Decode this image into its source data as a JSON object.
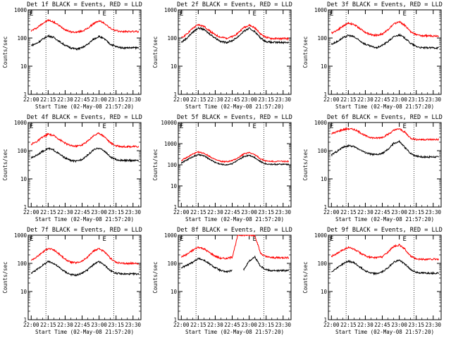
{
  "colors": {
    "events": "#000000",
    "lld": "#ff0000",
    "axis": "#000000",
    "background": "#ffffff"
  },
  "shared": {
    "xlabel": "Start Time (02-May-08 21:57:20)",
    "ylabel": "Counts/sec",
    "x_ticks": [
      "22:00",
      "22:15",
      "22:30",
      "22:45",
      "23:00",
      "23:15",
      "23:30"
    ],
    "y_ticks": [
      "1",
      "10",
      "100",
      "1000"
    ],
    "marker_labels": [
      "E",
      "E"
    ]
  },
  "chart_data": [
    {
      "type": "line",
      "title": "Det 1f BLACK = Events, RED = LLD",
      "xlabel": "Start Time (02-May-08 21:57:20)",
      "ylabel": "Counts/sec",
      "x_range": [
        "21:57:20",
        "23:37:00"
      ],
      "ylim": [
        1,
        1000
      ],
      "yscale": "log",
      "vlines": [
        "22:13",
        "23:13"
      ],
      "series": [
        {
          "color": "red",
          "x": [
            "22:00",
            "22:05",
            "22:10",
            "22:15",
            "22:20",
            "22:25",
            "22:30",
            "22:35",
            "22:40",
            "22:45",
            "22:50",
            "22:55",
            "23:00",
            "23:05",
            "23:10",
            "23:15",
            "23:20",
            "23:25",
            "23:30",
            "23:35"
          ],
          "values": [
            180,
            230,
            330,
            430,
            370,
            270,
            200,
            165,
            160,
            175,
            220,
            320,
            410,
            330,
            220,
            180,
            170,
            170,
            170,
            170
          ]
        },
        {
          "color": "black",
          "x": [
            "22:00",
            "22:05",
            "22:10",
            "22:15",
            "22:20",
            "22:25",
            "22:30",
            "22:35",
            "22:40",
            "22:45",
            "22:50",
            "22:55",
            "23:00",
            "23:05",
            "23:10",
            "23:15",
            "23:20",
            "23:25",
            "23:30",
            "23:35"
          ],
          "values": [
            55,
            65,
            90,
            120,
            105,
            75,
            55,
            45,
            40,
            45,
            60,
            90,
            115,
            90,
            60,
            50,
            45,
            45,
            45,
            45
          ]
        }
      ]
    },
    {
      "type": "line",
      "title": "Det 2f BLACK = Events, RED = LLD",
      "xlabel": "Start Time (02-May-08 21:57:20)",
      "ylabel": "Counts/sec",
      "x_range": [
        "21:57:20",
        "23:37:00"
      ],
      "ylim": [
        1,
        1000
      ],
      "yscale": "log",
      "vlines": [
        "22:13",
        "23:13"
      ],
      "series": [
        {
          "color": "red",
          "x": [
            "22:00",
            "22:05",
            "22:10",
            "22:15",
            "22:20",
            "22:25",
            "22:30",
            "22:35",
            "22:40",
            "22:45",
            "22:50",
            "22:55",
            "23:00",
            "23:05",
            "23:10",
            "23:15",
            "23:20",
            "23:25",
            "23:30",
            "23:35"
          ],
          "values": [
            100,
            140,
            220,
            300,
            260,
            180,
            130,
            105,
            100,
            110,
            150,
            230,
            290,
            230,
            140,
            105,
            95,
            95,
            95,
            95
          ]
        },
        {
          "color": "black",
          "x": [
            "22:00",
            "22:05",
            "22:10",
            "22:15",
            "22:20",
            "22:25",
            "22:30",
            "22:35",
            "22:40",
            "22:45",
            "22:50",
            "22:55",
            "23:00",
            "23:05",
            "23:10",
            "23:15",
            "23:20",
            "23:25",
            "23:30",
            "23:35"
          ],
          "values": [
            70,
            100,
            160,
            230,
            200,
            140,
            100,
            75,
            70,
            80,
            110,
            170,
            220,
            170,
            100,
            75,
            70,
            70,
            70,
            70
          ]
        }
      ]
    },
    {
      "type": "line",
      "title": "Det 3f BLACK = Events, RED = LLD",
      "xlabel": "Start Time (02-May-08 21:57:20)",
      "ylabel": "Counts/sec",
      "x_range": [
        "21:57:20",
        "23:37:00"
      ],
      "ylim": [
        1,
        1000
      ],
      "yscale": "log",
      "vlines": [
        "22:13",
        "23:13"
      ],
      "series": [
        {
          "color": "red",
          "x": [
            "22:00",
            "22:05",
            "22:10",
            "22:15",
            "22:20",
            "22:25",
            "22:30",
            "22:35",
            "22:40",
            "22:45",
            "22:50",
            "22:55",
            "23:00",
            "23:05",
            "23:10",
            "23:15",
            "23:20",
            "23:25",
            "23:30",
            "23:35"
          ],
          "values": [
            150,
            190,
            260,
            340,
            300,
            220,
            160,
            130,
            125,
            140,
            200,
            310,
            380,
            280,
            170,
            130,
            120,
            120,
            120,
            120
          ]
        },
        {
          "color": "black",
          "x": [
            "22:00",
            "22:05",
            "22:10",
            "22:15",
            "22:20",
            "22:25",
            "22:30",
            "22:35",
            "22:40",
            "22:45",
            "22:50",
            "22:55",
            "23:00",
            "23:05",
            "23:10",
            "23:15",
            "23:20",
            "23:25",
            "23:30",
            "23:35"
          ],
          "values": [
            60,
            75,
            100,
            125,
            110,
            80,
            60,
            50,
            45,
            55,
            75,
            110,
            130,
            100,
            65,
            50,
            45,
            45,
            45,
            45
          ]
        }
      ]
    },
    {
      "type": "line",
      "title": "Det 4f BLACK = Events, RED = LLD",
      "xlabel": "Start Time (02-May-08 21:57:20)",
      "ylabel": "Counts/sec",
      "x_range": [
        "21:57:20",
        "23:37:00"
      ],
      "ylim": [
        1,
        1000
      ],
      "yscale": "log",
      "vlines": [
        "22:13",
        "23:13"
      ],
      "series": [
        {
          "color": "red",
          "x": [
            "22:00",
            "22:05",
            "22:10",
            "22:15",
            "22:20",
            "22:25",
            "22:30",
            "22:35",
            "22:40",
            "22:45",
            "22:50",
            "22:55",
            "23:00",
            "23:05",
            "23:10",
            "23:15",
            "23:20",
            "23:25",
            "23:30",
            "23:35"
          ],
          "values": [
            170,
            210,
            300,
            390,
            340,
            250,
            185,
            150,
            145,
            160,
            220,
            340,
            420,
            310,
            190,
            150,
            140,
            140,
            140,
            140
          ]
        },
        {
          "color": "black",
          "x": [
            "22:00",
            "22:05",
            "22:10",
            "22:15",
            "22:20",
            "22:25",
            "22:30",
            "22:35",
            "22:40",
            "22:45",
            "22:50",
            "22:55",
            "23:00",
            "23:05",
            "23:10",
            "23:15",
            "23:20",
            "23:25",
            "23:30",
            "23:35"
          ],
          "values": [
            55,
            70,
            95,
            120,
            105,
            75,
            55,
            45,
            42,
            50,
            70,
            105,
            125,
            95,
            60,
            48,
            45,
            45,
            45,
            45
          ]
        }
      ]
    },
    {
      "type": "line",
      "title": "Det 5f BLACK = Events, RED = LLD",
      "xlabel": "Start Time (02-May-08 21:57:20)",
      "ylabel": "Counts/sec",
      "x_range": [
        "21:57:20",
        "23:37:00"
      ],
      "ylim": [
        1,
        10000
      ],
      "yscale": "log",
      "vlines": [
        "22:13",
        "23:13"
      ],
      "series": [
        {
          "color": "red",
          "x": [
            "22:00",
            "22:05",
            "22:10",
            "22:15",
            "22:20",
            "22:25",
            "22:30",
            "22:35",
            "22:40",
            "22:45",
            "22:50",
            "22:55",
            "23:00",
            "23:05",
            "23:10",
            "23:15",
            "23:20",
            "23:25",
            "23:30",
            "23:35"
          ],
          "values": [
            160,
            220,
            320,
            400,
            350,
            250,
            175,
            145,
            140,
            155,
            210,
            320,
            390,
            300,
            190,
            150,
            145,
            145,
            145,
            145
          ]
        },
        {
          "color": "black",
          "x": [
            "22:00",
            "22:05",
            "22:10",
            "22:15",
            "22:20",
            "22:25",
            "22:30",
            "22:35",
            "22:40",
            "22:45",
            "22:50",
            "22:55",
            "23:00",
            "23:05",
            "23:10",
            "23:15",
            "23:20",
            "23:25",
            "23:30",
            "23:35"
          ],
          "values": [
            120,
            170,
            240,
            300,
            265,
            185,
            130,
            105,
            100,
            115,
            160,
            240,
            290,
            220,
            140,
            110,
            105,
            105,
            105,
            105
          ]
        }
      ]
    },
    {
      "type": "line",
      "title": "Det 6f BLACK = Events, RED = LLD",
      "xlabel": "Start Time (02-May-08 21:57:20)",
      "ylabel": "Counts/sec",
      "x_range": [
        "21:57:20",
        "23:37:00"
      ],
      "ylim": [
        1,
        1000
      ],
      "yscale": "log",
      "vlines": [
        "22:13",
        "23:13"
      ],
      "series": [
        {
          "color": "red",
          "x": [
            "22:00",
            "22:05",
            "22:10",
            "22:15",
            "22:20",
            "22:25",
            "22:30",
            "22:35",
            "22:40",
            "22:45",
            "22:50",
            "22:55",
            "23:00",
            "23:05",
            "23:10",
            "23:15",
            "23:20",
            "23:25",
            "23:30",
            "23:35"
          ],
          "values": [
            400,
            470,
            560,
            600,
            570,
            450,
            340,
            290,
            280,
            300,
            380,
            520,
            600,
            450,
            280,
            250,
            250,
            250,
            250,
            250
          ]
        },
        {
          "color": "black",
          "x": [
            "22:00",
            "22:05",
            "22:10",
            "22:15",
            "22:20",
            "22:25",
            "22:30",
            "22:35",
            "22:40",
            "22:45",
            "22:50",
            "22:55",
            "23:00",
            "23:05",
            "23:10",
            "23:15",
            "23:20",
            "23:25",
            "23:30",
            "23:35"
          ],
          "values": [
            70,
            95,
            130,
            150,
            140,
            110,
            85,
            75,
            72,
            80,
            110,
            180,
            210,
            130,
            80,
            65,
            60,
            60,
            60,
            60
          ]
        }
      ]
    },
    {
      "type": "line",
      "title": "Det 7f BLACK = Events, RED = LLD",
      "xlabel": "Start Time (02-May-08 21:57:20)",
      "ylabel": "Counts/sec",
      "x_range": [
        "21:57:20",
        "23:37:00"
      ],
      "ylim": [
        1,
        1000
      ],
      "yscale": "log",
      "vlines": [
        "22:13",
        "23:13"
      ],
      "series": [
        {
          "color": "red",
          "x": [
            "22:00",
            "22:05",
            "22:10",
            "22:15",
            "22:20",
            "22:25",
            "22:30",
            "22:35",
            "22:40",
            "22:45",
            "22:50",
            "22:55",
            "23:00",
            "23:05",
            "23:10",
            "23:15",
            "23:20",
            "23:25",
            "23:30",
            "23:35"
          ],
          "values": [
            130,
            170,
            250,
            340,
            300,
            210,
            140,
            110,
            105,
            120,
            170,
            270,
            340,
            250,
            150,
            110,
            100,
            100,
            100,
            100
          ]
        },
        {
          "color": "black",
          "x": [
            "22:00",
            "22:05",
            "22:10",
            "22:15",
            "22:20",
            "22:25",
            "22:30",
            "22:35",
            "22:40",
            "22:45",
            "22:50",
            "22:55",
            "23:00",
            "23:05",
            "23:10",
            "23:15",
            "23:20",
            "23:25",
            "23:30",
            "23:35"
          ],
          "values": [
            45,
            60,
            85,
            115,
            100,
            70,
            50,
            40,
            38,
            45,
            60,
            90,
            115,
            85,
            55,
            45,
            42,
            42,
            42,
            42
          ]
        }
      ]
    },
    {
      "type": "line",
      "title": "Det 8f BLACK = Events, RED = LLD",
      "xlabel": "Start Time (02-May-08 21:57:20)",
      "ylabel": "Counts/sec",
      "x_range": [
        "21:57:20",
        "23:37:00"
      ],
      "ylim": [
        1,
        1000
      ],
      "yscale": "log",
      "vlines": [
        "22:13",
        "23:13"
      ],
      "series": [
        {
          "color": "red",
          "x": [
            "22:00",
            "22:05",
            "22:10",
            "22:15",
            "22:20",
            "22:25",
            "22:30",
            "22:35",
            "22:40",
            "22:45",
            "22:50",
            "22:55",
            "23:00",
            "23:05",
            "23:10",
            "23:15",
            "23:20",
            "23:25",
            "23:30",
            "23:35"
          ],
          "values": [
            170,
            210,
            290,
            380,
            330,
            240,
            180,
            150,
            150,
            165,
            1000,
            1000,
            1000,
            1000,
            230,
            170,
            160,
            160,
            160,
            160
          ]
        },
        {
          "color": "black",
          "x": [
            "22:00",
            "22:05",
            "22:10",
            "22:15",
            "22:20",
            "22:25",
            "22:30",
            "22:35",
            "22:40",
            "22:45",
            "22:50",
            "22:55",
            "23:00",
            "23:05",
            "23:10",
            "23:15",
            "23:20",
            "23:25",
            "23:30",
            "23:35"
          ],
          "values": [
            70,
            85,
            110,
            150,
            130,
            95,
            70,
            55,
            50,
            55,
            null,
            60,
            120,
            170,
            80,
            60,
            55,
            55,
            55,
            55
          ]
        }
      ]
    },
    {
      "type": "line",
      "title": "Det 9f BLACK = Events, RED = LLD",
      "xlabel": "Start Time (02-May-08 21:57:20)",
      "ylabel": "Counts/sec",
      "x_range": [
        "21:57:20",
        "23:37:00"
      ],
      "ylim": [
        1,
        1000
      ],
      "yscale": "log",
      "vlines": [
        "22:13",
        "23:13"
      ],
      "series": [
        {
          "color": "red",
          "x": [
            "22:00",
            "22:05",
            "22:10",
            "22:15",
            "22:20",
            "22:25",
            "22:30",
            "22:35",
            "22:40",
            "22:45",
            "22:50",
            "22:55",
            "23:00",
            "23:05",
            "23:10",
            "23:15",
            "23:20",
            "23:25",
            "23:30",
            "23:35"
          ],
          "values": [
            180,
            220,
            300,
            370,
            320,
            240,
            185,
            160,
            160,
            175,
            250,
            400,
            450,
            320,
            180,
            140,
            140,
            140,
            140,
            140
          ]
        },
        {
          "color": "black",
          "x": [
            "22:00",
            "22:05",
            "22:10",
            "22:15",
            "22:20",
            "22:25",
            "22:30",
            "22:35",
            "22:40",
            "22:45",
            "22:50",
            "22:55",
            "23:00",
            "23:05",
            "23:10",
            "23:15",
            "23:20",
            "23:25",
            "23:30",
            "23:35"
          ],
          "values": [
            50,
            70,
            95,
            120,
            105,
            75,
            55,
            45,
            43,
            50,
            70,
            110,
            130,
            95,
            60,
            48,
            45,
            45,
            45,
            45
          ]
        }
      ]
    }
  ]
}
